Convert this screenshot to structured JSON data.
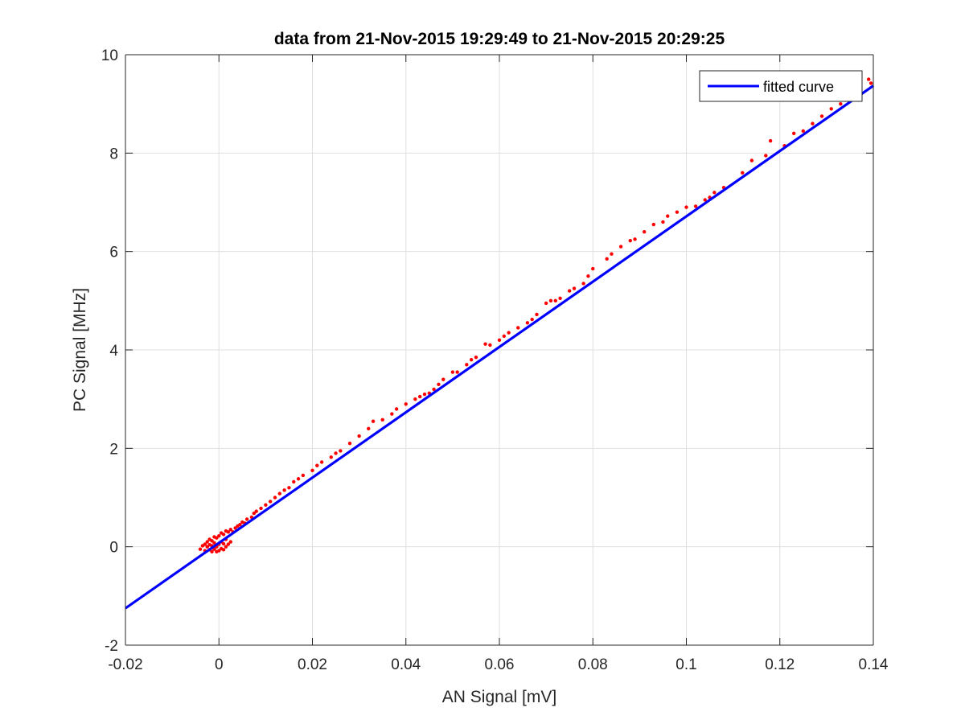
{
  "chart_data": {
    "type": "scatter",
    "title": "data from 21-Nov-2015 19:29:49 to 21-Nov-2015 20:29:25",
    "xlabel": "AN Signal [mV]",
    "ylabel": "PC Signal [MHz]",
    "xlim": [
      -0.02,
      0.14
    ],
    "ylim": [
      -2,
      10
    ],
    "xticks": [
      -0.02,
      0,
      0.02,
      0.04,
      0.06,
      0.08,
      0.1,
      0.12,
      0.14
    ],
    "xtick_labels": [
      "-0.02",
      "0",
      "0.02",
      "0.04",
      "0.06",
      "0.08",
      "0.1",
      "0.12",
      "0.14"
    ],
    "yticks": [
      -2,
      0,
      2,
      4,
      6,
      8,
      10
    ],
    "ytick_labels": [
      "-2",
      "0",
      "2",
      "4",
      "6",
      "8",
      "10"
    ],
    "grid": true,
    "legend_position": "top-right",
    "series": [
      {
        "name": "",
        "kind": "scatter",
        "color": "#ff0000",
        "points": [
          [
            -0.004,
            -0.05
          ],
          [
            -0.0035,
            0.02
          ],
          [
            -0.003,
            -0.08
          ],
          [
            -0.003,
            0.05
          ],
          [
            -0.0025,
            0.0
          ],
          [
            -0.0025,
            0.1
          ],
          [
            -0.002,
            -0.06
          ],
          [
            -0.002,
            0.04
          ],
          [
            -0.002,
            0.15
          ],
          [
            -0.0015,
            -0.1
          ],
          [
            -0.0015,
            0.02
          ],
          [
            -0.0015,
            0.12
          ],
          [
            -0.001,
            -0.05
          ],
          [
            -0.001,
            0.08
          ],
          [
            -0.001,
            0.2
          ],
          [
            -0.0005,
            -0.1
          ],
          [
            -0.0005,
            0.0
          ],
          [
            -0.0005,
            0.18
          ],
          [
            0.0,
            -0.08
          ],
          [
            0.0,
            0.05
          ],
          [
            0.0,
            0.22
          ],
          [
            0.0005,
            -0.04
          ],
          [
            0.0005,
            0.1
          ],
          [
            0.0005,
            0.28
          ],
          [
            0.001,
            -0.06
          ],
          [
            0.001,
            0.06
          ],
          [
            0.001,
            0.25
          ],
          [
            0.0015,
            0.0
          ],
          [
            0.0015,
            0.15
          ],
          [
            0.0015,
            0.32
          ],
          [
            0.002,
            0.05
          ],
          [
            0.002,
            0.3
          ],
          [
            0.0025,
            0.1
          ],
          [
            0.0025,
            0.35
          ],
          [
            0.003,
            0.3
          ],
          [
            0.0035,
            0.38
          ],
          [
            0.004,
            0.42
          ],
          [
            0.0045,
            0.45
          ],
          [
            0.005,
            0.5
          ],
          [
            0.0055,
            0.48
          ],
          [
            0.006,
            0.56
          ],
          [
            0.007,
            0.6
          ],
          [
            0.0075,
            0.68
          ],
          [
            0.008,
            0.72
          ],
          [
            0.009,
            0.78
          ],
          [
            0.01,
            0.85
          ],
          [
            0.011,
            0.92
          ],
          [
            0.012,
            1.0
          ],
          [
            0.013,
            1.08
          ],
          [
            0.014,
            1.15
          ],
          [
            0.015,
            1.2
          ],
          [
            0.016,
            1.32
          ],
          [
            0.017,
            1.38
          ],
          [
            0.018,
            1.45
          ],
          [
            0.02,
            1.55
          ],
          [
            0.021,
            1.65
          ],
          [
            0.022,
            1.72
          ],
          [
            0.024,
            1.82
          ],
          [
            0.025,
            1.9
          ],
          [
            0.026,
            1.95
          ],
          [
            0.028,
            2.1
          ],
          [
            0.03,
            2.25
          ],
          [
            0.032,
            2.4
          ],
          [
            0.033,
            2.55
          ],
          [
            0.035,
            2.58
          ],
          [
            0.037,
            2.7
          ],
          [
            0.038,
            2.8
          ],
          [
            0.04,
            2.9
          ],
          [
            0.042,
            3.0
          ],
          [
            0.043,
            3.05
          ],
          [
            0.044,
            3.1
          ],
          [
            0.045,
            3.12
          ],
          [
            0.046,
            3.2
          ],
          [
            0.047,
            3.3
          ],
          [
            0.048,
            3.4
          ],
          [
            0.05,
            3.55
          ],
          [
            0.051,
            3.55
          ],
          [
            0.053,
            3.7
          ],
          [
            0.054,
            3.8
          ],
          [
            0.055,
            3.85
          ],
          [
            0.057,
            4.12
          ],
          [
            0.058,
            4.1
          ],
          [
            0.06,
            4.2
          ],
          [
            0.061,
            4.28
          ],
          [
            0.062,
            4.35
          ],
          [
            0.064,
            4.45
          ],
          [
            0.066,
            4.55
          ],
          [
            0.067,
            4.62
          ],
          [
            0.068,
            4.72
          ],
          [
            0.07,
            4.95
          ],
          [
            0.071,
            5.0
          ],
          [
            0.072,
            5.0
          ],
          [
            0.073,
            5.05
          ],
          [
            0.075,
            5.2
          ],
          [
            0.076,
            5.25
          ],
          [
            0.078,
            5.35
          ],
          [
            0.079,
            5.5
          ],
          [
            0.08,
            5.65
          ],
          [
            0.083,
            5.85
          ],
          [
            0.084,
            5.95
          ],
          [
            0.086,
            6.1
          ],
          [
            0.088,
            6.22
          ],
          [
            0.089,
            6.25
          ],
          [
            0.091,
            6.4
          ],
          [
            0.093,
            6.55
          ],
          [
            0.095,
            6.6
          ],
          [
            0.096,
            6.72
          ],
          [
            0.098,
            6.8
          ],
          [
            0.1,
            6.9
          ],
          [
            0.102,
            6.92
          ],
          [
            0.104,
            7.05
          ],
          [
            0.105,
            7.1
          ],
          [
            0.106,
            7.2
          ],
          [
            0.108,
            7.3
          ],
          [
            0.112,
            7.6
          ],
          [
            0.114,
            7.85
          ],
          [
            0.117,
            7.95
          ],
          [
            0.118,
            8.25
          ],
          [
            0.121,
            8.15
          ],
          [
            0.123,
            8.4
          ],
          [
            0.125,
            8.45
          ],
          [
            0.127,
            8.6
          ],
          [
            0.129,
            8.75
          ],
          [
            0.131,
            8.9
          ],
          [
            0.133,
            9.0
          ],
          [
            0.135,
            9.15
          ],
          [
            0.137,
            9.3
          ],
          [
            0.139,
            9.5
          ],
          [
            0.1395,
            9.42
          ]
        ]
      },
      {
        "name": "fitted curve",
        "kind": "line",
        "color": "#0000ff",
        "x": [
          -0.02,
          0.14
        ],
        "y": [
          -1.25,
          9.37
        ]
      }
    ]
  }
}
